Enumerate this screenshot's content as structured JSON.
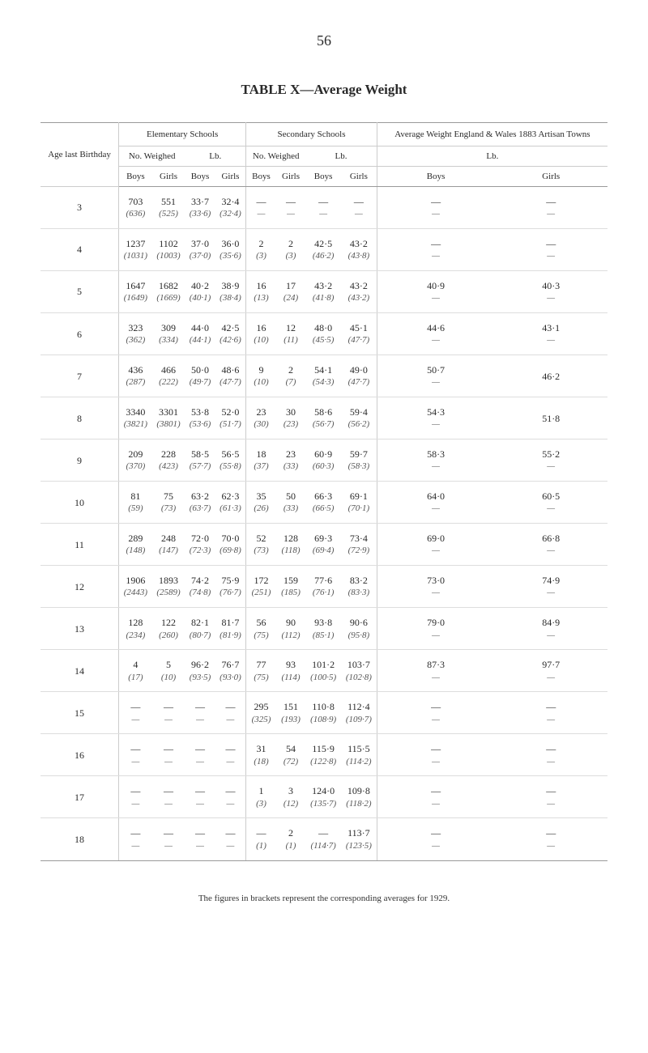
{
  "page_number": "56",
  "title": "TABLE X—Average Weight",
  "headers": {
    "age": "Age last Birthday",
    "elem": "Elementary Schools",
    "sec": "Secondary Schools",
    "avg": "Average Weight England & Wales 1883 Artisan Towns",
    "no_weighed": "No. Weighed",
    "lb": "Lb.",
    "boys": "Boys",
    "girls": "Girls"
  },
  "footnote": "The figures in brackets represent the corresponding averages for 1929.",
  "rows": [
    {
      "age": "3",
      "elem_nw_b": "703",
      "elem_nw_b_s": "(636)",
      "elem_nw_g": "551",
      "elem_nw_g_s": "(525)",
      "elem_lb_b": "33·7",
      "elem_lb_b_s": "(33·6)",
      "elem_lb_g": "32·4",
      "elem_lb_g_s": "(32·4)",
      "sec_nw_b": "—",
      "sec_nw_b_s": "—",
      "sec_nw_g": "—",
      "sec_nw_g_s": "—",
      "sec_lb_b": "—",
      "sec_lb_b_s": "—",
      "sec_lb_g": "—",
      "sec_lb_g_s": "—",
      "avg_b": "—",
      "avg_b_s": "—",
      "avg_g": "—",
      "avg_g_s": "—"
    },
    {
      "age": "4",
      "elem_nw_b": "1237",
      "elem_nw_b_s": "(1031)",
      "elem_nw_g": "1102",
      "elem_nw_g_s": "(1003)",
      "elem_lb_b": "37·0",
      "elem_lb_b_s": "(37·0)",
      "elem_lb_g": "36·0",
      "elem_lb_g_s": "(35·6)",
      "sec_nw_b": "2",
      "sec_nw_b_s": "(3)",
      "sec_nw_g": "2",
      "sec_nw_g_s": "(3)",
      "sec_lb_b": "42·5",
      "sec_lb_b_s": "(46·2)",
      "sec_lb_g": "43·2",
      "sec_lb_g_s": "(43·8)",
      "avg_b": "—",
      "avg_b_s": "—",
      "avg_g": "—",
      "avg_g_s": "—"
    },
    {
      "age": "5",
      "elem_nw_b": "1647",
      "elem_nw_b_s": "(1649)",
      "elem_nw_g": "1682",
      "elem_nw_g_s": "(1669)",
      "elem_lb_b": "40·2",
      "elem_lb_b_s": "(40·1)",
      "elem_lb_g": "38·9",
      "elem_lb_g_s": "(38·4)",
      "sec_nw_b": "16",
      "sec_nw_b_s": "(13)",
      "sec_nw_g": "17",
      "sec_nw_g_s": "(24)",
      "sec_lb_b": "43·2",
      "sec_lb_b_s": "(41·8)",
      "sec_lb_g": "43·2",
      "sec_lb_g_s": "(43·2)",
      "avg_b": "40·9",
      "avg_b_s": "—",
      "avg_g": "40·3",
      "avg_g_s": "—"
    },
    {
      "age": "6",
      "elem_nw_b": "323",
      "elem_nw_b_s": "(362)",
      "elem_nw_g": "309",
      "elem_nw_g_s": "(334)",
      "elem_lb_b": "44·0",
      "elem_lb_b_s": "(44·1)",
      "elem_lb_g": "42·5",
      "elem_lb_g_s": "(42·6)",
      "sec_nw_b": "16",
      "sec_nw_b_s": "(10)",
      "sec_nw_g": "12",
      "sec_nw_g_s": "(11)",
      "sec_lb_b": "48·0",
      "sec_lb_b_s": "(45·5)",
      "sec_lb_g": "45·1",
      "sec_lb_g_s": "(47·7)",
      "avg_b": "44·6",
      "avg_b_s": "—",
      "avg_g": "43·1",
      "avg_g_s": "—"
    },
    {
      "age": "7",
      "elem_nw_b": "436",
      "elem_nw_b_s": "(287)",
      "elem_nw_g": "466",
      "elem_nw_g_s": "(222)",
      "elem_lb_b": "50·0",
      "elem_lb_b_s": "(49·7)",
      "elem_lb_g": "48·6",
      "elem_lb_g_s": "(47·7)",
      "sec_nw_b": "9",
      "sec_nw_b_s": "(10)",
      "sec_nw_g": "2",
      "sec_nw_g_s": "(7)",
      "sec_lb_b": "54·1",
      "sec_lb_b_s": "(54·3)",
      "sec_lb_g": "49·0",
      "sec_lb_g_s": "(47·7)",
      "avg_b": "50·7",
      "avg_b_s": "—",
      "avg_g": "46·2",
      "avg_g_s": ""
    },
    {
      "age": "8",
      "elem_nw_b": "3340",
      "elem_nw_b_s": "(3821)",
      "elem_nw_g": "3301",
      "elem_nw_g_s": "(3801)",
      "elem_lb_b": "53·8",
      "elem_lb_b_s": "(53·6)",
      "elem_lb_g": "52·0",
      "elem_lb_g_s": "(51·7)",
      "sec_nw_b": "23",
      "sec_nw_b_s": "(30)",
      "sec_nw_g": "30",
      "sec_nw_g_s": "(23)",
      "sec_lb_b": "58·6",
      "sec_lb_b_s": "(56·7)",
      "sec_lb_g": "59·4",
      "sec_lb_g_s": "(56·2)",
      "avg_b": "54·3",
      "avg_b_s": "—",
      "avg_g": "51·8",
      "avg_g_s": ""
    },
    {
      "age": "9",
      "elem_nw_b": "209",
      "elem_nw_b_s": "(370)",
      "elem_nw_g": "228",
      "elem_nw_g_s": "(423)",
      "elem_lb_b": "58·5",
      "elem_lb_b_s": "(57·7)",
      "elem_lb_g": "56·5",
      "elem_lb_g_s": "(55·8)",
      "sec_nw_b": "18",
      "sec_nw_b_s": "(37)",
      "sec_nw_g": "23",
      "sec_nw_g_s": "(33)",
      "sec_lb_b": "60·9",
      "sec_lb_b_s": "(60·3)",
      "sec_lb_g": "59·7",
      "sec_lb_g_s": "(58·3)",
      "avg_b": "58·3",
      "avg_b_s": "—",
      "avg_g": "55·2",
      "avg_g_s": "—"
    },
    {
      "age": "10",
      "elem_nw_b": "81",
      "elem_nw_b_s": "(59)",
      "elem_nw_g": "75",
      "elem_nw_g_s": "(73)",
      "elem_lb_b": "63·2",
      "elem_lb_b_s": "(63·7)",
      "elem_lb_g": "62·3",
      "elem_lb_g_s": "(61·3)",
      "sec_nw_b": "35",
      "sec_nw_b_s": "(26)",
      "sec_nw_g": "50",
      "sec_nw_g_s": "(33)",
      "sec_lb_b": "66·3",
      "sec_lb_b_s": "(66·5)",
      "sec_lb_g": "69·1",
      "sec_lb_g_s": "(70·1)",
      "avg_b": "64·0",
      "avg_b_s": "—",
      "avg_g": "60·5",
      "avg_g_s": "—"
    },
    {
      "age": "11",
      "elem_nw_b": "289",
      "elem_nw_b_s": "(148)",
      "elem_nw_g": "248",
      "elem_nw_g_s": "(147)",
      "elem_lb_b": "72·0",
      "elem_lb_b_s": "(72·3)",
      "elem_lb_g": "70·0",
      "elem_lb_g_s": "(69·8)",
      "sec_nw_b": "52",
      "sec_nw_b_s": "(73)",
      "sec_nw_g": "128",
      "sec_nw_g_s": "(118)",
      "sec_lb_b": "69·3",
      "sec_lb_b_s": "(69·4)",
      "sec_lb_g": "73·4",
      "sec_lb_g_s": "(72·9)",
      "avg_b": "69·0",
      "avg_b_s": "—",
      "avg_g": "66·8",
      "avg_g_s": "—"
    },
    {
      "age": "12",
      "elem_nw_b": "1906",
      "elem_nw_b_s": "(2443)",
      "elem_nw_g": "1893",
      "elem_nw_g_s": "(2589)",
      "elem_lb_b": "74·2",
      "elem_lb_b_s": "(74·8)",
      "elem_lb_g": "75·9",
      "elem_lb_g_s": "(76·7)",
      "sec_nw_b": "172",
      "sec_nw_b_s": "(251)",
      "sec_nw_g": "159",
      "sec_nw_g_s": "(185)",
      "sec_lb_b": "77·6",
      "sec_lb_b_s": "(76·1)",
      "sec_lb_g": "83·2",
      "sec_lb_g_s": "(83·3)",
      "avg_b": "73·0",
      "avg_b_s": "—",
      "avg_g": "74·9",
      "avg_g_s": "—"
    },
    {
      "age": "13",
      "elem_nw_b": "128",
      "elem_nw_b_s": "(234)",
      "elem_nw_g": "122",
      "elem_nw_g_s": "(260)",
      "elem_lb_b": "82·1",
      "elem_lb_b_s": "(80·7)",
      "elem_lb_g": "81·7",
      "elem_lb_g_s": "(81·9)",
      "sec_nw_b": "56",
      "sec_nw_b_s": "(75)",
      "sec_nw_g": "90",
      "sec_nw_g_s": "(112)",
      "sec_lb_b": "93·8",
      "sec_lb_b_s": "(85·1)",
      "sec_lb_g": "90·6",
      "sec_lb_g_s": "(95·8)",
      "avg_b": "79·0",
      "avg_b_s": "—",
      "avg_g": "84·9",
      "avg_g_s": "—"
    },
    {
      "age": "14",
      "elem_nw_b": "4",
      "elem_nw_b_s": "(17)",
      "elem_nw_g": "5",
      "elem_nw_g_s": "(10)",
      "elem_lb_b": "96·2",
      "elem_lb_b_s": "(93·5)",
      "elem_lb_g": "76·7",
      "elem_lb_g_s": "(93·0)",
      "sec_nw_b": "77",
      "sec_nw_b_s": "(75)",
      "sec_nw_g": "93",
      "sec_nw_g_s": "(114)",
      "sec_lb_b": "101·2",
      "sec_lb_b_s": "(100·5)",
      "sec_lb_g": "103·7",
      "sec_lb_g_s": "(102·8)",
      "avg_b": "87·3",
      "avg_b_s": "—",
      "avg_g": "97·7",
      "avg_g_s": "—"
    },
    {
      "age": "15",
      "elem_nw_b": "—",
      "elem_nw_b_s": "—",
      "elem_nw_g": "—",
      "elem_nw_g_s": "—",
      "elem_lb_b": "—",
      "elem_lb_b_s": "—",
      "elem_lb_g": "—",
      "elem_lb_g_s": "—",
      "sec_nw_b": "295",
      "sec_nw_b_s": "(325)",
      "sec_nw_g": "151",
      "sec_nw_g_s": "(193)",
      "sec_lb_b": "110·8",
      "sec_lb_b_s": "(108·9)",
      "sec_lb_g": "112·4",
      "sec_lb_g_s": "(109·7)",
      "avg_b": "—",
      "avg_b_s": "—",
      "avg_g": "—",
      "avg_g_s": "—"
    },
    {
      "age": "16",
      "elem_nw_b": "—",
      "elem_nw_b_s": "—",
      "elem_nw_g": "—",
      "elem_nw_g_s": "—",
      "elem_lb_b": "—",
      "elem_lb_b_s": "—",
      "elem_lb_g": "—",
      "elem_lb_g_s": "—",
      "sec_nw_b": "31",
      "sec_nw_b_s": "(18)",
      "sec_nw_g": "54",
      "sec_nw_g_s": "(72)",
      "sec_lb_b": "115·9",
      "sec_lb_b_s": "(122·8)",
      "sec_lb_g": "115·5",
      "sec_lb_g_s": "(114·2)",
      "avg_b": "—",
      "avg_b_s": "—",
      "avg_g": "—",
      "avg_g_s": "—"
    },
    {
      "age": "17",
      "elem_nw_b": "—",
      "elem_nw_b_s": "—",
      "elem_nw_g": "—",
      "elem_nw_g_s": "—",
      "elem_lb_b": "—",
      "elem_lb_b_s": "—",
      "elem_lb_g": "—",
      "elem_lb_g_s": "—",
      "sec_nw_b": "1",
      "sec_nw_b_s": "(3)",
      "sec_nw_g": "3",
      "sec_nw_g_s": "(12)",
      "sec_lb_b": "124·0",
      "sec_lb_b_s": "(135·7)",
      "sec_lb_g": "109·8",
      "sec_lb_g_s": "(118·2)",
      "avg_b": "—",
      "avg_b_s": "—",
      "avg_g": "—",
      "avg_g_s": "—"
    },
    {
      "age": "18",
      "elem_nw_b": "—",
      "elem_nw_b_s": "—",
      "elem_nw_g": "—",
      "elem_nw_g_s": "—",
      "elem_lb_b": "—",
      "elem_lb_b_s": "—",
      "elem_lb_g": "—",
      "elem_lb_g_s": "—",
      "sec_nw_b": "—",
      "sec_nw_b_s": "(1)",
      "sec_nw_g": "2",
      "sec_nw_g_s": "(1)",
      "sec_lb_b": "—",
      "sec_lb_b_s": "(114·7)",
      "sec_lb_g": "113·7",
      "sec_lb_g_s": "(123·5)",
      "avg_b": "—",
      "avg_b_s": "—",
      "avg_g": "—",
      "avg_g_s": "—"
    }
  ]
}
